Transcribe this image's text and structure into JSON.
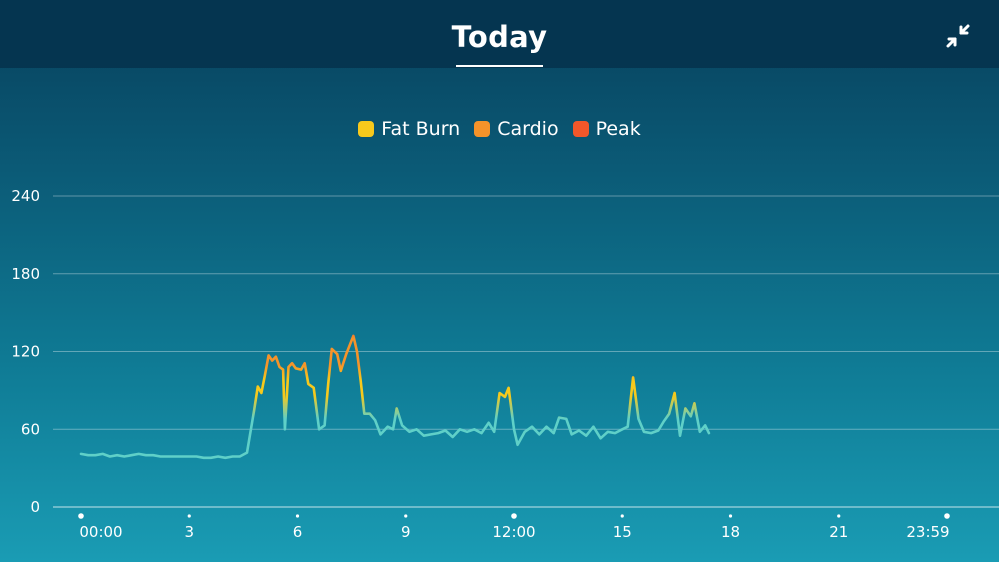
{
  "header": {
    "title": "Today"
  },
  "legend": [
    {
      "name": "Fat Burn",
      "color": "#f7c91c"
    },
    {
      "name": "Cardio",
      "color": "#f5932a"
    },
    {
      "name": "Peak",
      "color": "#f2572a"
    }
  ],
  "colors": {
    "resting": "#5fd0c8",
    "fat_burn": "#f7c91c",
    "cardio": "#f5932a",
    "peak": "#f2572a"
  },
  "icons": {
    "collapse": "collapse-arrows-icon"
  },
  "chart_data": {
    "type": "line",
    "title": "",
    "xlabel": "",
    "ylabel": "",
    "ylim": [
      0,
      240
    ],
    "xlim": [
      0,
      24
    ],
    "y_ticks": [
      "240",
      "180",
      "120",
      "60",
      "0"
    ],
    "y_tick_values": [
      240,
      180,
      120,
      60,
      0
    ],
    "x_ticks": [
      "00:00",
      "3",
      "6",
      "9",
      "12:00",
      "15",
      "18",
      "21",
      "23:59"
    ],
    "x_tick_values": [
      0,
      3,
      6,
      9,
      12,
      15,
      18,
      21,
      24
    ],
    "grid": true,
    "legend_position": "top-center",
    "zone_thresholds": {
      "fat_burn": 80,
      "cardio": 112,
      "peak": 136
    },
    "series": [
      {
        "values": [
          [
            0.0,
            41
          ],
          [
            0.2,
            40
          ],
          [
            0.4,
            40
          ],
          [
            0.6,
            41
          ],
          [
            0.8,
            39
          ],
          [
            1.0,
            40
          ],
          [
            1.2,
            39
          ],
          [
            1.4,
            40
          ],
          [
            1.6,
            41
          ],
          [
            1.8,
            40
          ],
          [
            2.0,
            40
          ],
          [
            2.2,
            39
          ],
          [
            2.4,
            39
          ],
          [
            2.6,
            39
          ],
          [
            2.8,
            39
          ],
          [
            3.0,
            39
          ],
          [
            3.2,
            39
          ],
          [
            3.4,
            38
          ],
          [
            3.6,
            38
          ],
          [
            3.8,
            39
          ],
          [
            4.0,
            38
          ],
          [
            4.2,
            39
          ],
          [
            4.4,
            39
          ],
          [
            4.6,
            42
          ],
          [
            4.8,
            75
          ],
          [
            4.9,
            93
          ],
          [
            5.0,
            88
          ],
          [
            5.1,
            102
          ],
          [
            5.2,
            117
          ],
          [
            5.3,
            113
          ],
          [
            5.4,
            116
          ],
          [
            5.5,
            108
          ],
          [
            5.6,
            106
          ],
          [
            5.65,
            60
          ],
          [
            5.75,
            108
          ],
          [
            5.85,
            111
          ],
          [
            5.95,
            107
          ],
          [
            6.1,
            106
          ],
          [
            6.2,
            111
          ],
          [
            6.3,
            95
          ],
          [
            6.45,
            92
          ],
          [
            6.6,
            60
          ],
          [
            6.75,
            63
          ],
          [
            6.85,
            95
          ],
          [
            6.95,
            122
          ],
          [
            7.1,
            118
          ],
          [
            7.2,
            105
          ],
          [
            7.35,
            118
          ],
          [
            7.55,
            132
          ],
          [
            7.65,
            120
          ],
          [
            7.75,
            98
          ],
          [
            7.85,
            72
          ],
          [
            8.0,
            72
          ],
          [
            8.15,
            67
          ],
          [
            8.3,
            56
          ],
          [
            8.5,
            62
          ],
          [
            8.65,
            60
          ],
          [
            8.75,
            76
          ],
          [
            8.9,
            63
          ],
          [
            9.1,
            58
          ],
          [
            9.3,
            60
          ],
          [
            9.5,
            55
          ],
          [
            9.7,
            56
          ],
          [
            9.9,
            57
          ],
          [
            10.1,
            59
          ],
          [
            10.3,
            54
          ],
          [
            10.5,
            60
          ],
          [
            10.7,
            58
          ],
          [
            10.9,
            60
          ],
          [
            11.1,
            57
          ],
          [
            11.3,
            65
          ],
          [
            11.45,
            58
          ],
          [
            11.6,
            88
          ],
          [
            11.75,
            85
          ],
          [
            11.85,
            92
          ],
          [
            12.0,
            60
          ],
          [
            12.1,
            48
          ],
          [
            12.3,
            58
          ],
          [
            12.5,
            62
          ],
          [
            12.7,
            56
          ],
          [
            12.9,
            62
          ],
          [
            13.1,
            57
          ],
          [
            13.25,
            69
          ],
          [
            13.45,
            68
          ],
          [
            13.6,
            56
          ],
          [
            13.8,
            59
          ],
          [
            14.0,
            55
          ],
          [
            14.2,
            62
          ],
          [
            14.4,
            53
          ],
          [
            14.6,
            58
          ],
          [
            14.8,
            57
          ],
          [
            15.0,
            60
          ],
          [
            15.15,
            62
          ],
          [
            15.3,
            100
          ],
          [
            15.45,
            68
          ],
          [
            15.6,
            58
          ],
          [
            15.8,
            57
          ],
          [
            16.0,
            59
          ],
          [
            16.15,
            66
          ],
          [
            16.3,
            72
          ],
          [
            16.45,
            88
          ],
          [
            16.6,
            55
          ],
          [
            16.75,
            76
          ],
          [
            16.9,
            70
          ],
          [
            17.0,
            80
          ],
          [
            17.15,
            58
          ],
          [
            17.3,
            63
          ],
          [
            17.4,
            57
          ]
        ]
      }
    ]
  }
}
